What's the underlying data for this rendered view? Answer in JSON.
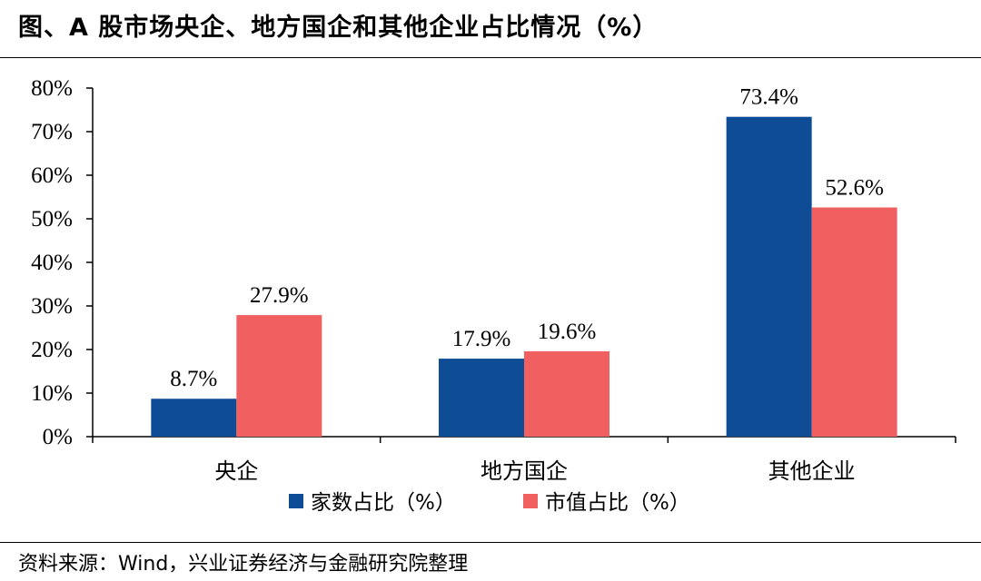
{
  "header": {
    "title": "图、A 股市场央企、地方国企和其他企业占比情况（%）"
  },
  "footer": {
    "source": "资料来源：Wind，兴业证券经济与金融研究院整理"
  },
  "colors": {
    "series_1": "#0e4c96",
    "series_2": "#f06060"
  },
  "chart_data": {
    "type": "bar",
    "title": "图、A 股市场央企、地方国企和其他企业占比情况（%）",
    "categories": [
      "央企",
      "地方国企",
      "其他企业"
    ],
    "series": [
      {
        "name": "家数占比（%）",
        "values": [
          8.7,
          17.9,
          73.4
        ],
        "labels": [
          "8.7%",
          "17.9%",
          "73.4%"
        ],
        "color": "#0e4c96"
      },
      {
        "name": "市值占比（%）",
        "values": [
          27.9,
          19.6,
          52.6
        ],
        "labels": [
          "27.9%",
          "19.6%",
          "52.6%"
        ],
        "color": "#f06060"
      }
    ],
    "ylim": [
      0,
      80
    ],
    "yticks": [
      0,
      10,
      20,
      30,
      40,
      50,
      60,
      70,
      80
    ],
    "ytick_labels": [
      "0%",
      "10%",
      "20%",
      "30%",
      "40%",
      "50%",
      "60%",
      "70%",
      "80%"
    ],
    "xlabel": "",
    "ylabel": "",
    "grid": false,
    "legend_position": "bottom"
  }
}
